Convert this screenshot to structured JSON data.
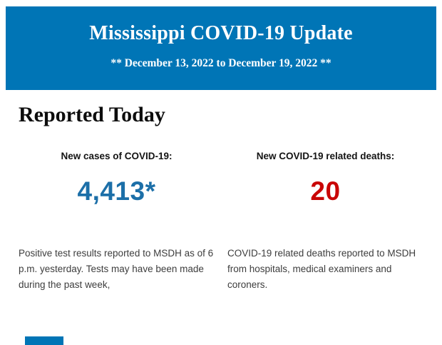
{
  "header": {
    "title": "Mississippi COVID-19 Update",
    "subtitle": "** December 13, 2022 to December 19, 2022 **",
    "background_color": "#0075b6",
    "text_color": "#ffffff"
  },
  "section": {
    "heading": "Reported Today"
  },
  "stats": [
    {
      "label": "New cases of COVID-19:",
      "value": "4,413*",
      "value_color": "#1c6fa8",
      "description": "Positive test results reported to MSDH as of 6 p.m. yesterday. Tests may have been made during the past week,"
    },
    {
      "label": "New COVID-19 related deaths:",
      "value": "20",
      "value_color": "#c90606",
      "description": "COVID-19 related deaths reported to MSDH from hospitals, medical examiners and coroners."
    }
  ],
  "footer": {
    "next_section_fragment_color": "#0075b6"
  }
}
